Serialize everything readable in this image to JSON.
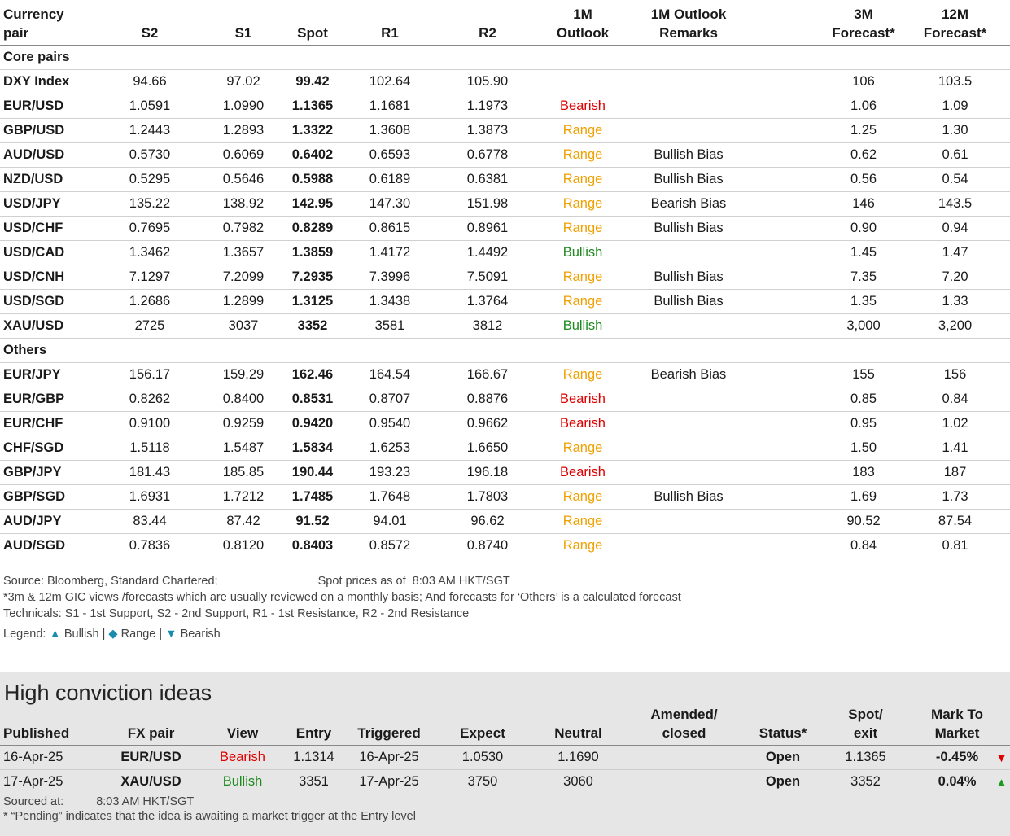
{
  "headers": {
    "pair": [
      "Currency",
      "pair"
    ],
    "s2": "S2",
    "s1": "S1",
    "spot": "Spot",
    "r1": "R1",
    "r2": "R2",
    "outlook": [
      "1M",
      "Outlook"
    ],
    "remarks": [
      "1M Outlook",
      "Remarks"
    ],
    "f3m": [
      "3M",
      "Forecast*"
    ],
    "f12m": [
      "12M",
      "Forecast*"
    ]
  },
  "sections": [
    {
      "title": "Core pairs",
      "rows": [
        {
          "pair": "DXY Index",
          "s2": "94.66",
          "s1": "97.02",
          "spot": "99.42",
          "r1": "102.64",
          "r2": "105.90",
          "outlook": "",
          "cls": "",
          "remarks": "",
          "f3m": "106",
          "f12m": "103.5"
        },
        {
          "pair": "EUR/USD",
          "s2": "1.0591",
          "s1": "1.0990",
          "spot": "1.1365",
          "r1": "1.1681",
          "r2": "1.1973",
          "outlook": "Bearish",
          "cls": "bearish",
          "remarks": "",
          "f3m": "1.06",
          "f12m": "1.09"
        },
        {
          "pair": "GBP/USD",
          "s2": "1.2443",
          "s1": "1.2893",
          "spot": "1.3322",
          "r1": "1.3608",
          "r2": "1.3873",
          "outlook": "Range",
          "cls": "range",
          "remarks": "",
          "f3m": "1.25",
          "f12m": "1.30"
        },
        {
          "pair": "AUD/USD",
          "s2": "0.5730",
          "s1": "0.6069",
          "spot": "0.6402",
          "r1": "0.6593",
          "r2": "0.6778",
          "outlook": "Range",
          "cls": "range",
          "remarks": "Bullish Bias",
          "f3m": "0.62",
          "f12m": "0.61"
        },
        {
          "pair": "NZD/USD",
          "s2": "0.5295",
          "s1": "0.5646",
          "spot": "0.5988",
          "r1": "0.6189",
          "r2": "0.6381",
          "outlook": "Range",
          "cls": "range",
          "remarks": "Bullish Bias",
          "f3m": "0.56",
          "f12m": "0.54"
        },
        {
          "pair": "USD/JPY",
          "s2": "135.22",
          "s1": "138.92",
          "spot": "142.95",
          "r1": "147.30",
          "r2": "151.98",
          "outlook": "Range",
          "cls": "range",
          "remarks": "Bearish Bias",
          "f3m": "146",
          "f12m": "143.5"
        },
        {
          "pair": "USD/CHF",
          "s2": "0.7695",
          "s1": "0.7982",
          "spot": "0.8289",
          "r1": "0.8615",
          "r2": "0.8961",
          "outlook": "Range",
          "cls": "range",
          "remarks": "Bullish Bias",
          "f3m": "0.90",
          "f12m": "0.94"
        },
        {
          "pair": "USD/CAD",
          "s2": "1.3462",
          "s1": "1.3657",
          "spot": "1.3859",
          "r1": "1.4172",
          "r2": "1.4492",
          "outlook": "Bullish",
          "cls": "bullish",
          "remarks": "",
          "f3m": "1.45",
          "f12m": "1.47"
        },
        {
          "pair": "USD/CNH",
          "s2": "7.1297",
          "s1": "7.2099",
          "spot": "7.2935",
          "r1": "7.3996",
          "r2": "7.5091",
          "outlook": "Range",
          "cls": "range",
          "remarks": "Bullish Bias",
          "f3m": "7.35",
          "f12m": "7.20"
        },
        {
          "pair": "USD/SGD",
          "s2": "1.2686",
          "s1": "1.2899",
          "spot": "1.3125",
          "r1": "1.3438",
          "r2": "1.3764",
          "outlook": "Range",
          "cls": "range",
          "remarks": "Bullish Bias",
          "f3m": "1.35",
          "f12m": "1.33"
        },
        {
          "pair": "XAU/USD",
          "s2": "2725",
          "s1": "3037",
          "spot": "3352",
          "r1": "3581",
          "r2": "3812",
          "outlook": "Bullish",
          "cls": "bullish",
          "remarks": "",
          "f3m": "3,000",
          "f12m": "3,200"
        }
      ]
    },
    {
      "title": "Others",
      "rows": [
        {
          "pair": "EUR/JPY",
          "s2": "156.17",
          "s1": "159.29",
          "spot": "162.46",
          "r1": "164.54",
          "r2": "166.67",
          "outlook": "Range",
          "cls": "range",
          "remarks": "Bearish Bias",
          "f3m": "155",
          "f12m": "156"
        },
        {
          "pair": "EUR/GBP",
          "s2": "0.8262",
          "s1": "0.8400",
          "spot": "0.8531",
          "r1": "0.8707",
          "r2": "0.8876",
          "outlook": "Bearish",
          "cls": "bearish",
          "remarks": "",
          "f3m": "0.85",
          "f12m": "0.84"
        },
        {
          "pair": "EUR/CHF",
          "s2": "0.9100",
          "s1": "0.9259",
          "spot": "0.9420",
          "r1": "0.9540",
          "r2": "0.9662",
          "outlook": "Bearish",
          "cls": "bearish",
          "remarks": "",
          "f3m": "0.95",
          "f12m": "1.02"
        },
        {
          "pair": "CHF/SGD",
          "s2": "1.5118",
          "s1": "1.5487",
          "spot": "1.5834",
          "r1": "1.6253",
          "r2": "1.6650",
          "outlook": "Range",
          "cls": "range",
          "remarks": "",
          "f3m": "1.50",
          "f12m": "1.41"
        },
        {
          "pair": "GBP/JPY",
          "s2": "181.43",
          "s1": "185.85",
          "spot": "190.44",
          "r1": "193.23",
          "r2": "196.18",
          "outlook": "Bearish",
          "cls": "bearish",
          "remarks": "",
          "f3m": "183",
          "f12m": "187"
        },
        {
          "pair": "GBP/SGD",
          "s2": "1.6931",
          "s1": "1.7212",
          "spot": "1.7485",
          "r1": "1.7648",
          "r2": "1.7803",
          "outlook": "Range",
          "cls": "range",
          "remarks": "Bullish Bias",
          "f3m": "1.69",
          "f12m": "1.73"
        },
        {
          "pair": "AUD/JPY",
          "s2": "83.44",
          "s1": "87.42",
          "spot": "91.52",
          "r1": "94.01",
          "r2": "96.62",
          "outlook": "Range",
          "cls": "range",
          "remarks": "",
          "f3m": "90.52",
          "f12m": "87.54"
        },
        {
          "pair": "AUD/SGD",
          "s2": "0.7836",
          "s1": "0.8120",
          "spot": "0.8403",
          "r1": "0.8572",
          "r2": "0.8740",
          "outlook": "Range",
          "cls": "range",
          "remarks": "",
          "f3m": "0.84",
          "f12m": "0.81"
        }
      ]
    }
  ],
  "notes": {
    "source": "Source: Bloomberg, Standard Chartered;",
    "spot_prefix": "Spot prices as of",
    "spot_time": "8:03 AM HKT/SGT",
    "footnote": "*3m & 12m GIC views /forecasts which are usually reviewed on a monthly basis; And forecasts for ‘Others’ is a calculated forecast",
    "technicals": "Technicals: S1 - 1st Support, S2 - 2nd Support, R1 - 1st Resistance, R2 - 2nd Resistance",
    "legend_label": "Legend:",
    "legend_bullish": "Bullish",
    "legend_range": "Range",
    "legend_bearish": "Bearish",
    "sep": "|"
  },
  "hci": {
    "title": "High conviction ideas",
    "headers": {
      "published": "Published",
      "pair": "FX pair",
      "view": "View",
      "entry": "Entry",
      "triggered": "Triggered",
      "expect": "Expect",
      "neutral": "Neutral",
      "amended": [
        "Amended/",
        "closed"
      ],
      "status": "Status*",
      "spot": [
        "Spot/",
        "exit"
      ],
      "mtm": [
        "Mark To",
        "Market"
      ]
    },
    "rows": [
      {
        "published": "16-Apr-25",
        "pair": "EUR/USD",
        "view": "Bearish",
        "cls": "bearish",
        "entry": "1.1314",
        "triggered": "16-Apr-25",
        "expect": "1.0530",
        "neutral": "1.1690",
        "amended": "",
        "status": "Open",
        "spot": "1.1365",
        "mtm": "-0.45%",
        "dir": "down"
      },
      {
        "published": "17-Apr-25",
        "pair": "XAU/USD",
        "view": "Bullish",
        "cls": "bullish",
        "entry": "3351",
        "triggered": "17-Apr-25",
        "expect": "3750",
        "neutral": "3060",
        "amended": "",
        "status": "Open",
        "spot": "3352",
        "mtm": "0.04%",
        "dir": "up"
      }
    ],
    "sourced_label": "Sourced at:",
    "sourced_time": "8:03 AM HKT/SGT",
    "pending_note": "* “Pending” indicates that the idea is awaiting a market trigger at the Entry level"
  }
}
